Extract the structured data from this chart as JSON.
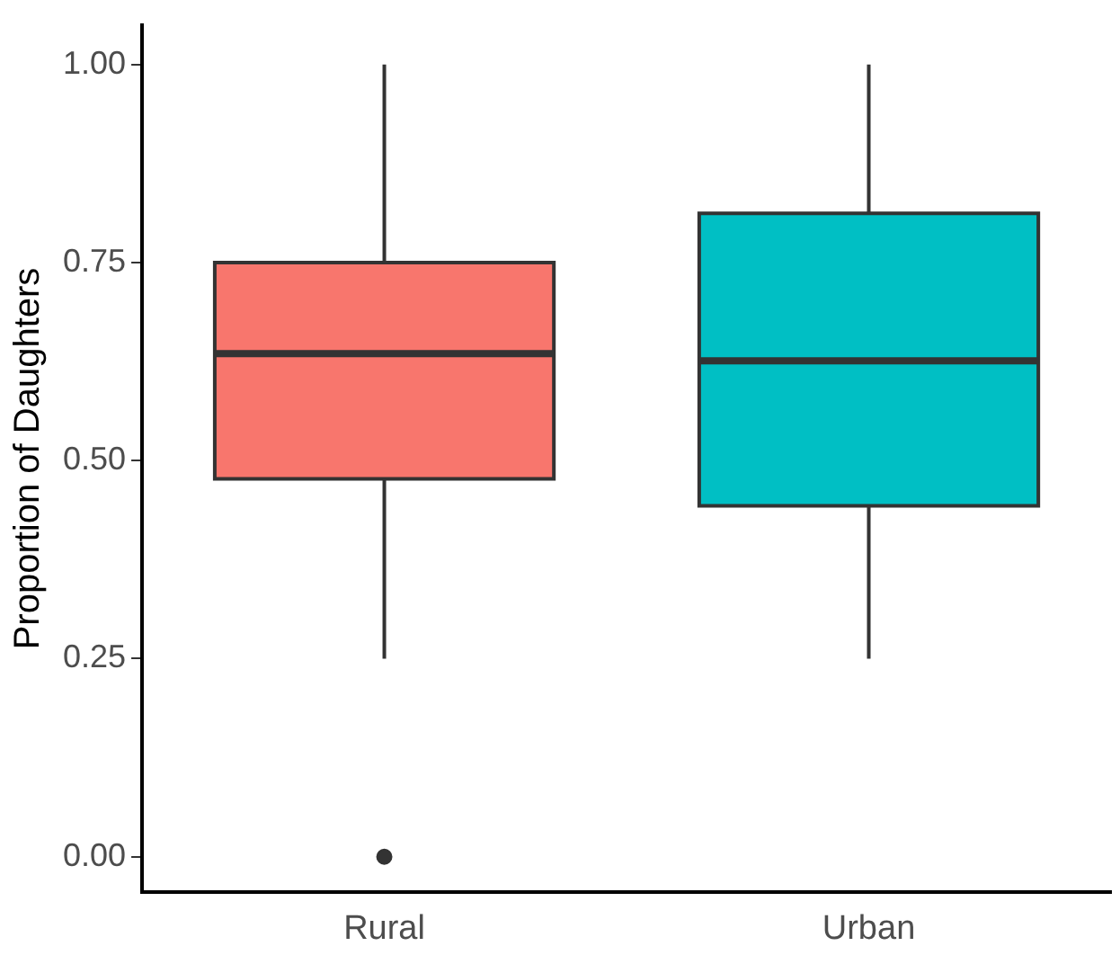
{
  "chart_data": {
    "type": "box",
    "ylabel": "Proportion of Daughters",
    "categories": [
      "Rural",
      "Urban"
    ],
    "colors": [
      "#f8766d",
      "#00bfc4"
    ],
    "boxes": [
      {
        "low": 0.25,
        "q1": 0.477,
        "median": 0.635,
        "q3": 0.75,
        "high": 1.0,
        "outliers": [
          0.0
        ]
      },
      {
        "low": 0.25,
        "q1": 0.443,
        "median": 0.626,
        "q3": 0.812,
        "high": 1.0
      }
    ],
    "ylim": [
      -0.045,
      1.05
    ],
    "yticks": [
      {
        "value": 0,
        "label": "0.00"
      },
      {
        "value": 0.25,
        "label": "0.25"
      },
      {
        "value": 0.5,
        "label": "0.50"
      },
      {
        "value": 0.75,
        "label": "0.75"
      },
      {
        "value": 1,
        "label": "1.00"
      }
    ],
    "grid": false,
    "legend": false
  }
}
